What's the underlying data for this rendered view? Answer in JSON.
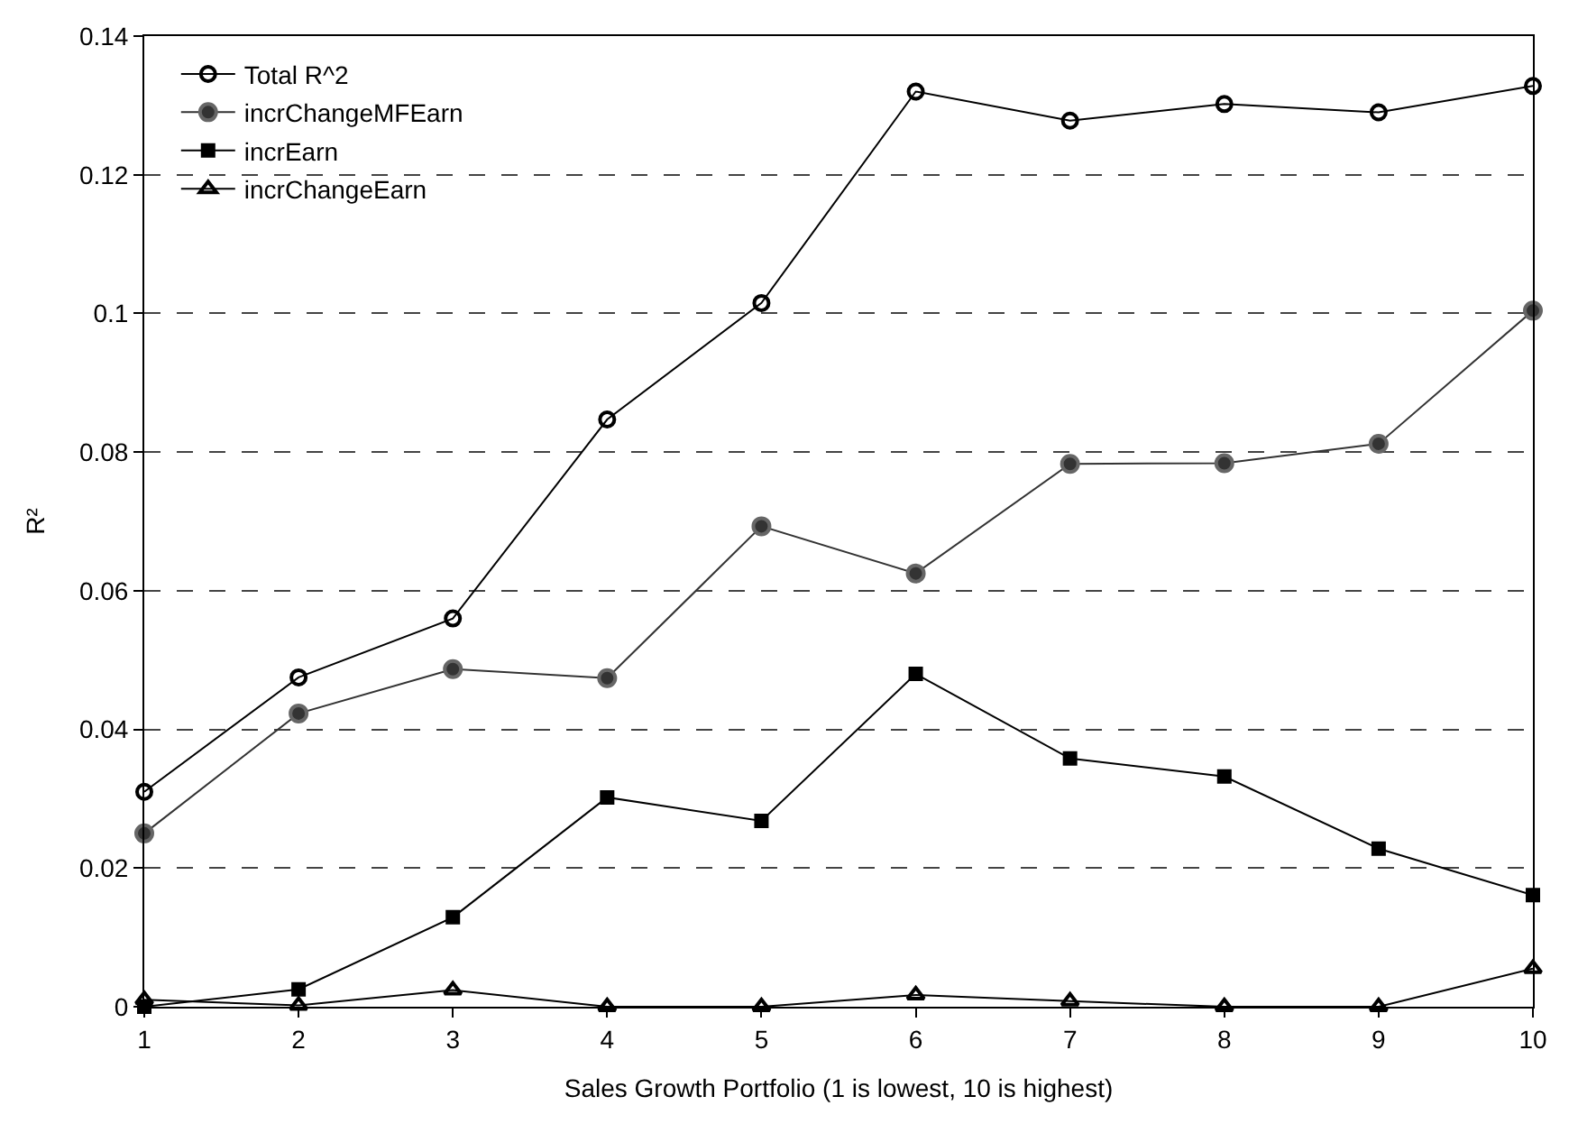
{
  "chart_data": {
    "type": "line",
    "xlabel": "Sales Growth Portfolio (1 is lowest, 10 is highest)",
    "ylabel": "R²",
    "x": [
      1,
      2,
      3,
      4,
      5,
      6,
      7,
      8,
      9,
      10
    ],
    "series": [
      {
        "name": "Total R^2",
        "color": "#000000",
        "marker": "circle-open",
        "values": [
          0.031,
          0.0475,
          0.056,
          0.0847,
          0.1015,
          0.132,
          0.1278,
          0.1302,
          0.129,
          0.1328
        ]
      },
      {
        "name": "incrChangeMFEarn",
        "color": "#333333",
        "marker": "circle",
        "values": [
          0.025,
          0.0423,
          0.0487,
          0.0474,
          0.0693,
          0.0625,
          0.0783,
          0.0784,
          0.0812,
          0.1004
        ]
      },
      {
        "name": "incrEarn",
        "color": "#000000",
        "marker": "square",
        "values": [
          0.0,
          0.0025,
          0.0129,
          0.0302,
          0.0268,
          0.048,
          0.0358,
          0.0332,
          0.0228,
          0.0161
        ]
      },
      {
        "name": "incrChangeEarn",
        "color": "#000000",
        "marker": "triangle-open",
        "values": [
          0.001,
          0.0002,
          0.0024,
          0.0,
          0.0,
          0.0017,
          0.0008,
          0.0,
          0.0,
          0.0055
        ]
      }
    ],
    "xlim": [
      1,
      10
    ],
    "xticks": [
      1,
      2,
      3,
      4,
      5,
      6,
      7,
      8,
      9,
      10
    ],
    "ylim": [
      0,
      0.14
    ],
    "yticks": [
      0,
      0.02,
      0.04,
      0.06,
      0.08,
      0.1,
      0.12,
      0.14
    ],
    "grid": "y",
    "legend": "top left",
    "line_style": "solid"
  }
}
